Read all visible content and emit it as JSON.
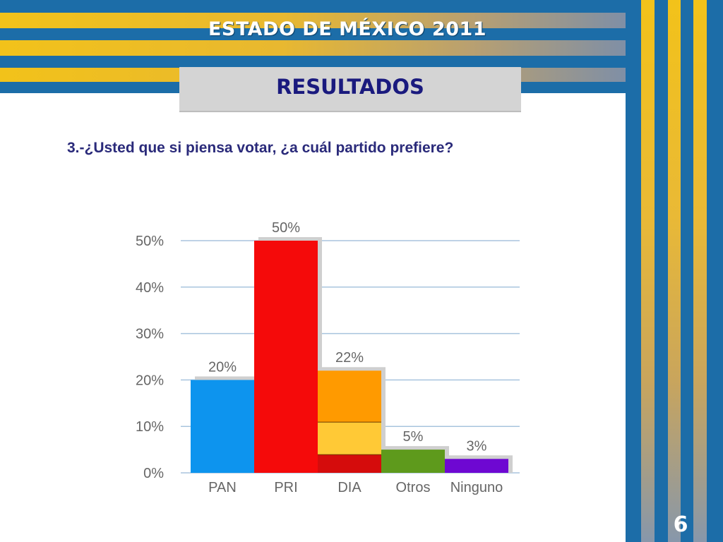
{
  "header": {
    "title": "ESTADO DE MÉXICO  2011"
  },
  "section": {
    "label": "RESULTADOS"
  },
  "question": "3.-¿Usted que si piensa votar, ¿a cuál partido prefiere?",
  "page_number": "6",
  "colors": {
    "stripe_blue": "#1c6da8",
    "stripe_gold": "#f2c21a",
    "title_box": "#d4d4d4",
    "title_text": "#1a1a7e"
  },
  "chart_data": {
    "type": "bar",
    "categories": [
      "PAN",
      "PRI",
      "DIA",
      "Otros",
      "Ninguno"
    ],
    "values": [
      20,
      50,
      22,
      5,
      3
    ],
    "data_labels": [
      "20%",
      "50%",
      "22%",
      "5%",
      "3%"
    ],
    "colors": [
      "#0d94ee",
      "#f50a0a",
      "#ff9a00",
      "#5e9a1c",
      "#6e08d2"
    ],
    "stacked_segments": {
      "DIA": [
        {
          "value": 4,
          "color": "#d50c0c"
        },
        {
          "value": 7,
          "color": "#ffc936"
        },
        {
          "value": 11,
          "color": "#ff9a00"
        }
      ]
    },
    "y_ticks": [
      "0%",
      "10%",
      "20%",
      "30%",
      "40%",
      "50%"
    ],
    "ylim": [
      0,
      50
    ],
    "grid": true
  }
}
